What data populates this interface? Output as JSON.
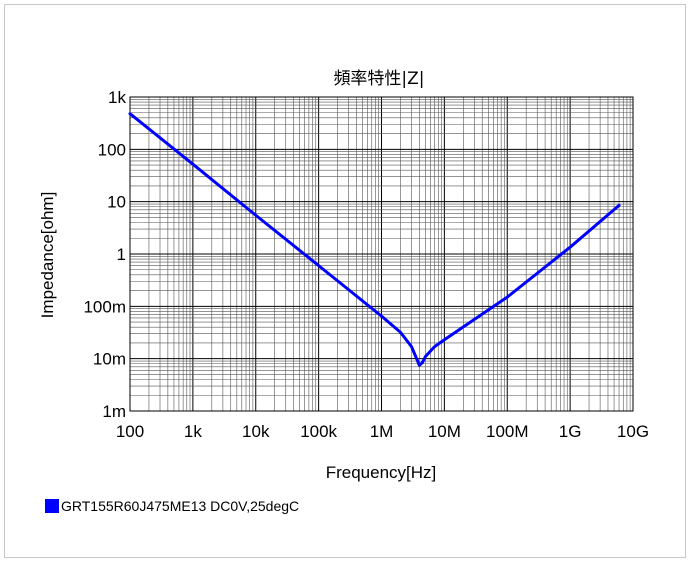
{
  "chart_data": {
    "type": "line",
    "title": "頻率特性|Z|",
    "xlabel": "Frequency[Hz]",
    "ylabel": "Impedance[ohm]",
    "x_scale": "log",
    "y_scale": "log",
    "xlim": [
      100,
      10000000000
    ],
    "ylim": [
      0.001,
      1000
    ],
    "grid": true,
    "legend_position": "bottom-left",
    "x_ticks": [
      {
        "value": 100,
        "label": "100"
      },
      {
        "value": 1000,
        "label": "1k"
      },
      {
        "value": 10000,
        "label": "10k"
      },
      {
        "value": 100000,
        "label": "100k"
      },
      {
        "value": 1000000,
        "label": "1M"
      },
      {
        "value": 10000000,
        "label": "10M"
      },
      {
        "value": 100000000,
        "label": "100M"
      },
      {
        "value": 1000000000,
        "label": "1G"
      },
      {
        "value": 10000000000,
        "label": "10G"
      }
    ],
    "y_ticks": [
      {
        "value": 0.001,
        "label": "1m"
      },
      {
        "value": 0.01,
        "label": "10m"
      },
      {
        "value": 0.1,
        "label": "100m"
      },
      {
        "value": 1,
        "label": "1"
      },
      {
        "value": 10,
        "label": "10"
      },
      {
        "value": 100,
        "label": "100"
      },
      {
        "value": 1000,
        "label": "1k"
      }
    ],
    "series": [
      {
        "name": "GRT155R60J475ME13 DC0V,25degC",
        "color": "#0000ff",
        "x": [
          100,
          1000,
          10000,
          100000,
          1000000,
          2000000,
          3000000,
          3500000,
          4000000,
          4500000,
          5000000,
          7000000,
          10000000,
          100000000,
          1000000000,
          6000000000
        ],
        "y": [
          480,
          52,
          5.5,
          0.6,
          0.065,
          0.032,
          0.017,
          0.011,
          0.0075,
          0.0085,
          0.011,
          0.017,
          0.023,
          0.15,
          1.35,
          8.5
        ]
      }
    ]
  }
}
